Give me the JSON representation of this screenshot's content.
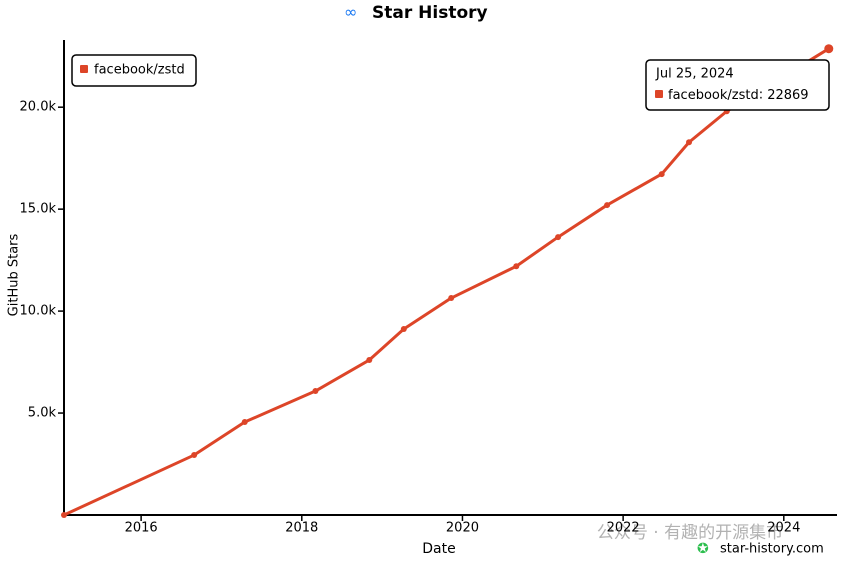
{
  "chart_data": {
    "type": "line",
    "title": "Star History",
    "x_label": "Date",
    "y_label": "GitHub Stars",
    "x": [
      2015.04,
      2016.66,
      2017.29,
      2018.17,
      2018.84,
      2019.27,
      2019.86,
      2020.67,
      2021.19,
      2021.8,
      2022.48,
      2022.82,
      2023.29,
      2024.56
    ],
    "series": [
      {
        "name": "facebook/zstd",
        "color": "#dd4528",
        "values": [
          0,
          2940,
          4560,
          6080,
          7600,
          9120,
          10640,
          12200,
          13630,
          15200,
          16720,
          18280,
          19800,
          22869
        ]
      }
    ],
    "xlim": [
      2015.04,
      2024.6
    ],
    "xticks": [
      2016,
      2018,
      2020,
      2022,
      2024
    ],
    "ylim": [
      0,
      23050
    ],
    "yticks": [
      {
        "value": 5000,
        "label": "5.0k"
      },
      {
        "value": 10000,
        "label": "10.0k"
      },
      {
        "value": 15000,
        "label": "15.0k"
      },
      {
        "value": 20000,
        "label": "20.0k"
      }
    ],
    "legend": "top-left",
    "tooltip": {
      "date": "Jul 25, 2024",
      "point": 13
    },
    "watermark": "公众号 · 有趣的开源集市",
    "credit": "star-history.com"
  }
}
